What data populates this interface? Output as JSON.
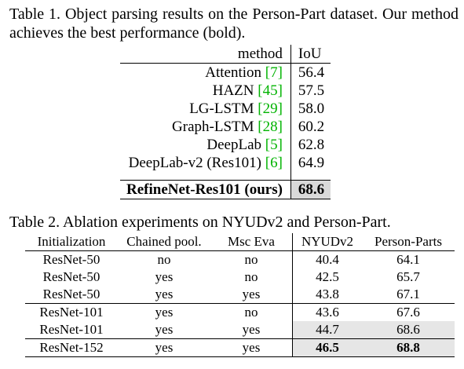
{
  "table1": {
    "caption": "Table 1. Object parsing results on the Person-Part dataset. Our method achieves the best performance (bold).",
    "header": {
      "method": "method",
      "iou": "IoU"
    },
    "rows": [
      {
        "name": "Attention",
        "cite": "[7]",
        "iou": "56.4"
      },
      {
        "name": "HAZN",
        "cite": "[45]",
        "iou": "57.5"
      },
      {
        "name": "LG-LSTM",
        "cite": "[29]",
        "iou": "58.0"
      },
      {
        "name": "Graph-LSTM",
        "cite": "[28]",
        "iou": "60.2"
      },
      {
        "name": "DeepLab",
        "cite": "[5]",
        "iou": "62.8"
      },
      {
        "name": "DeepLab-v2 (Res101)",
        "cite": "[6]",
        "iou": "64.9"
      }
    ],
    "best": {
      "name": "RefineNet-Res101 (ours)",
      "iou": "68.6"
    }
  },
  "table2": {
    "caption": "Table 2. Ablation experiments on NYUDv2 and Person-Part.",
    "headers": [
      "Initialization",
      "Chained pool.",
      "Msc Eva",
      "NYUDv2",
      "Person-Parts"
    ],
    "rows": [
      [
        "ResNet-50",
        "no",
        "no",
        "40.4",
        "64.1"
      ],
      [
        "ResNet-50",
        "yes",
        "no",
        "42.5",
        "65.7"
      ],
      [
        "ResNet-50",
        "yes",
        "yes",
        "43.8",
        "67.1"
      ],
      [
        "ResNet-101",
        "yes",
        "no",
        "43.6",
        "67.6"
      ],
      [
        "ResNet-101",
        "yes",
        "yes",
        "44.7",
        "68.6"
      ],
      [
        "ResNet-152",
        "yes",
        "yes",
        "46.5",
        "68.8"
      ]
    ]
  }
}
